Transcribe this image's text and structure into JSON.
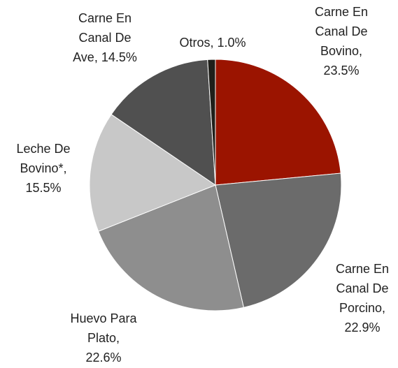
{
  "chart_data": {
    "type": "pie",
    "values": [
      23.5,
      22.9,
      22.6,
      15.5,
      14.5,
      1.0
    ],
    "value_labels": [
      "Carne En Canal De Bovino, 23.5%",
      "Carne En Canal De Porcino, 22.9%",
      "Huevo Para Plato, 22.6%",
      "Leche De Bovino*, 15.5%",
      "Carne En Canal De Ave, 14.5%",
      "Otros, 1.0%"
    ],
    "colors": [
      "#9b1400",
      "#6b6b6b",
      "#8e8e8e",
      "#c8c8c8",
      "#505050",
      "#1f1f1a"
    ]
  }
}
